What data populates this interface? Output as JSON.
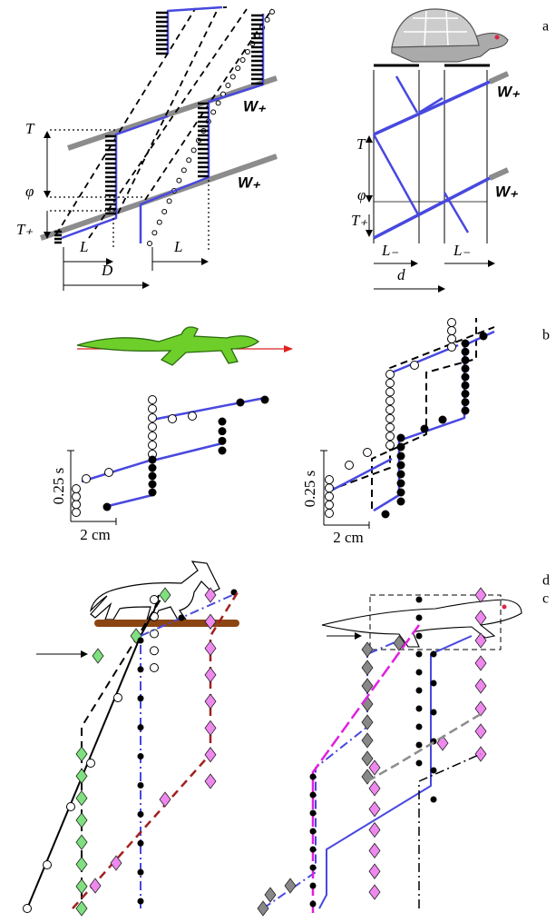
{
  "panel_labels": {
    "a": "a",
    "b": "b",
    "c": "c",
    "d": "d"
  },
  "a_left": {
    "t": "T",
    "phi": "φ",
    "t_plus": "T₊",
    "l_1": "L",
    "l_2": "L",
    "d": "D",
    "w_upper": "W₊",
    "w_lower": "W₊"
  },
  "a_right": {
    "t": "T",
    "phi": "φ",
    "t_plus": "T₊",
    "l_minus_1": "L₋",
    "l_minus_2": "L₋",
    "d": "d",
    "w_upper": "W₊",
    "w_lower": "W₊"
  },
  "b_left": {
    "time_scale": "0.25 s",
    "length_scale": "2 cm"
  },
  "b_right": {
    "time_scale": "0.25 s",
    "length_scale": "2 cm"
  }
}
